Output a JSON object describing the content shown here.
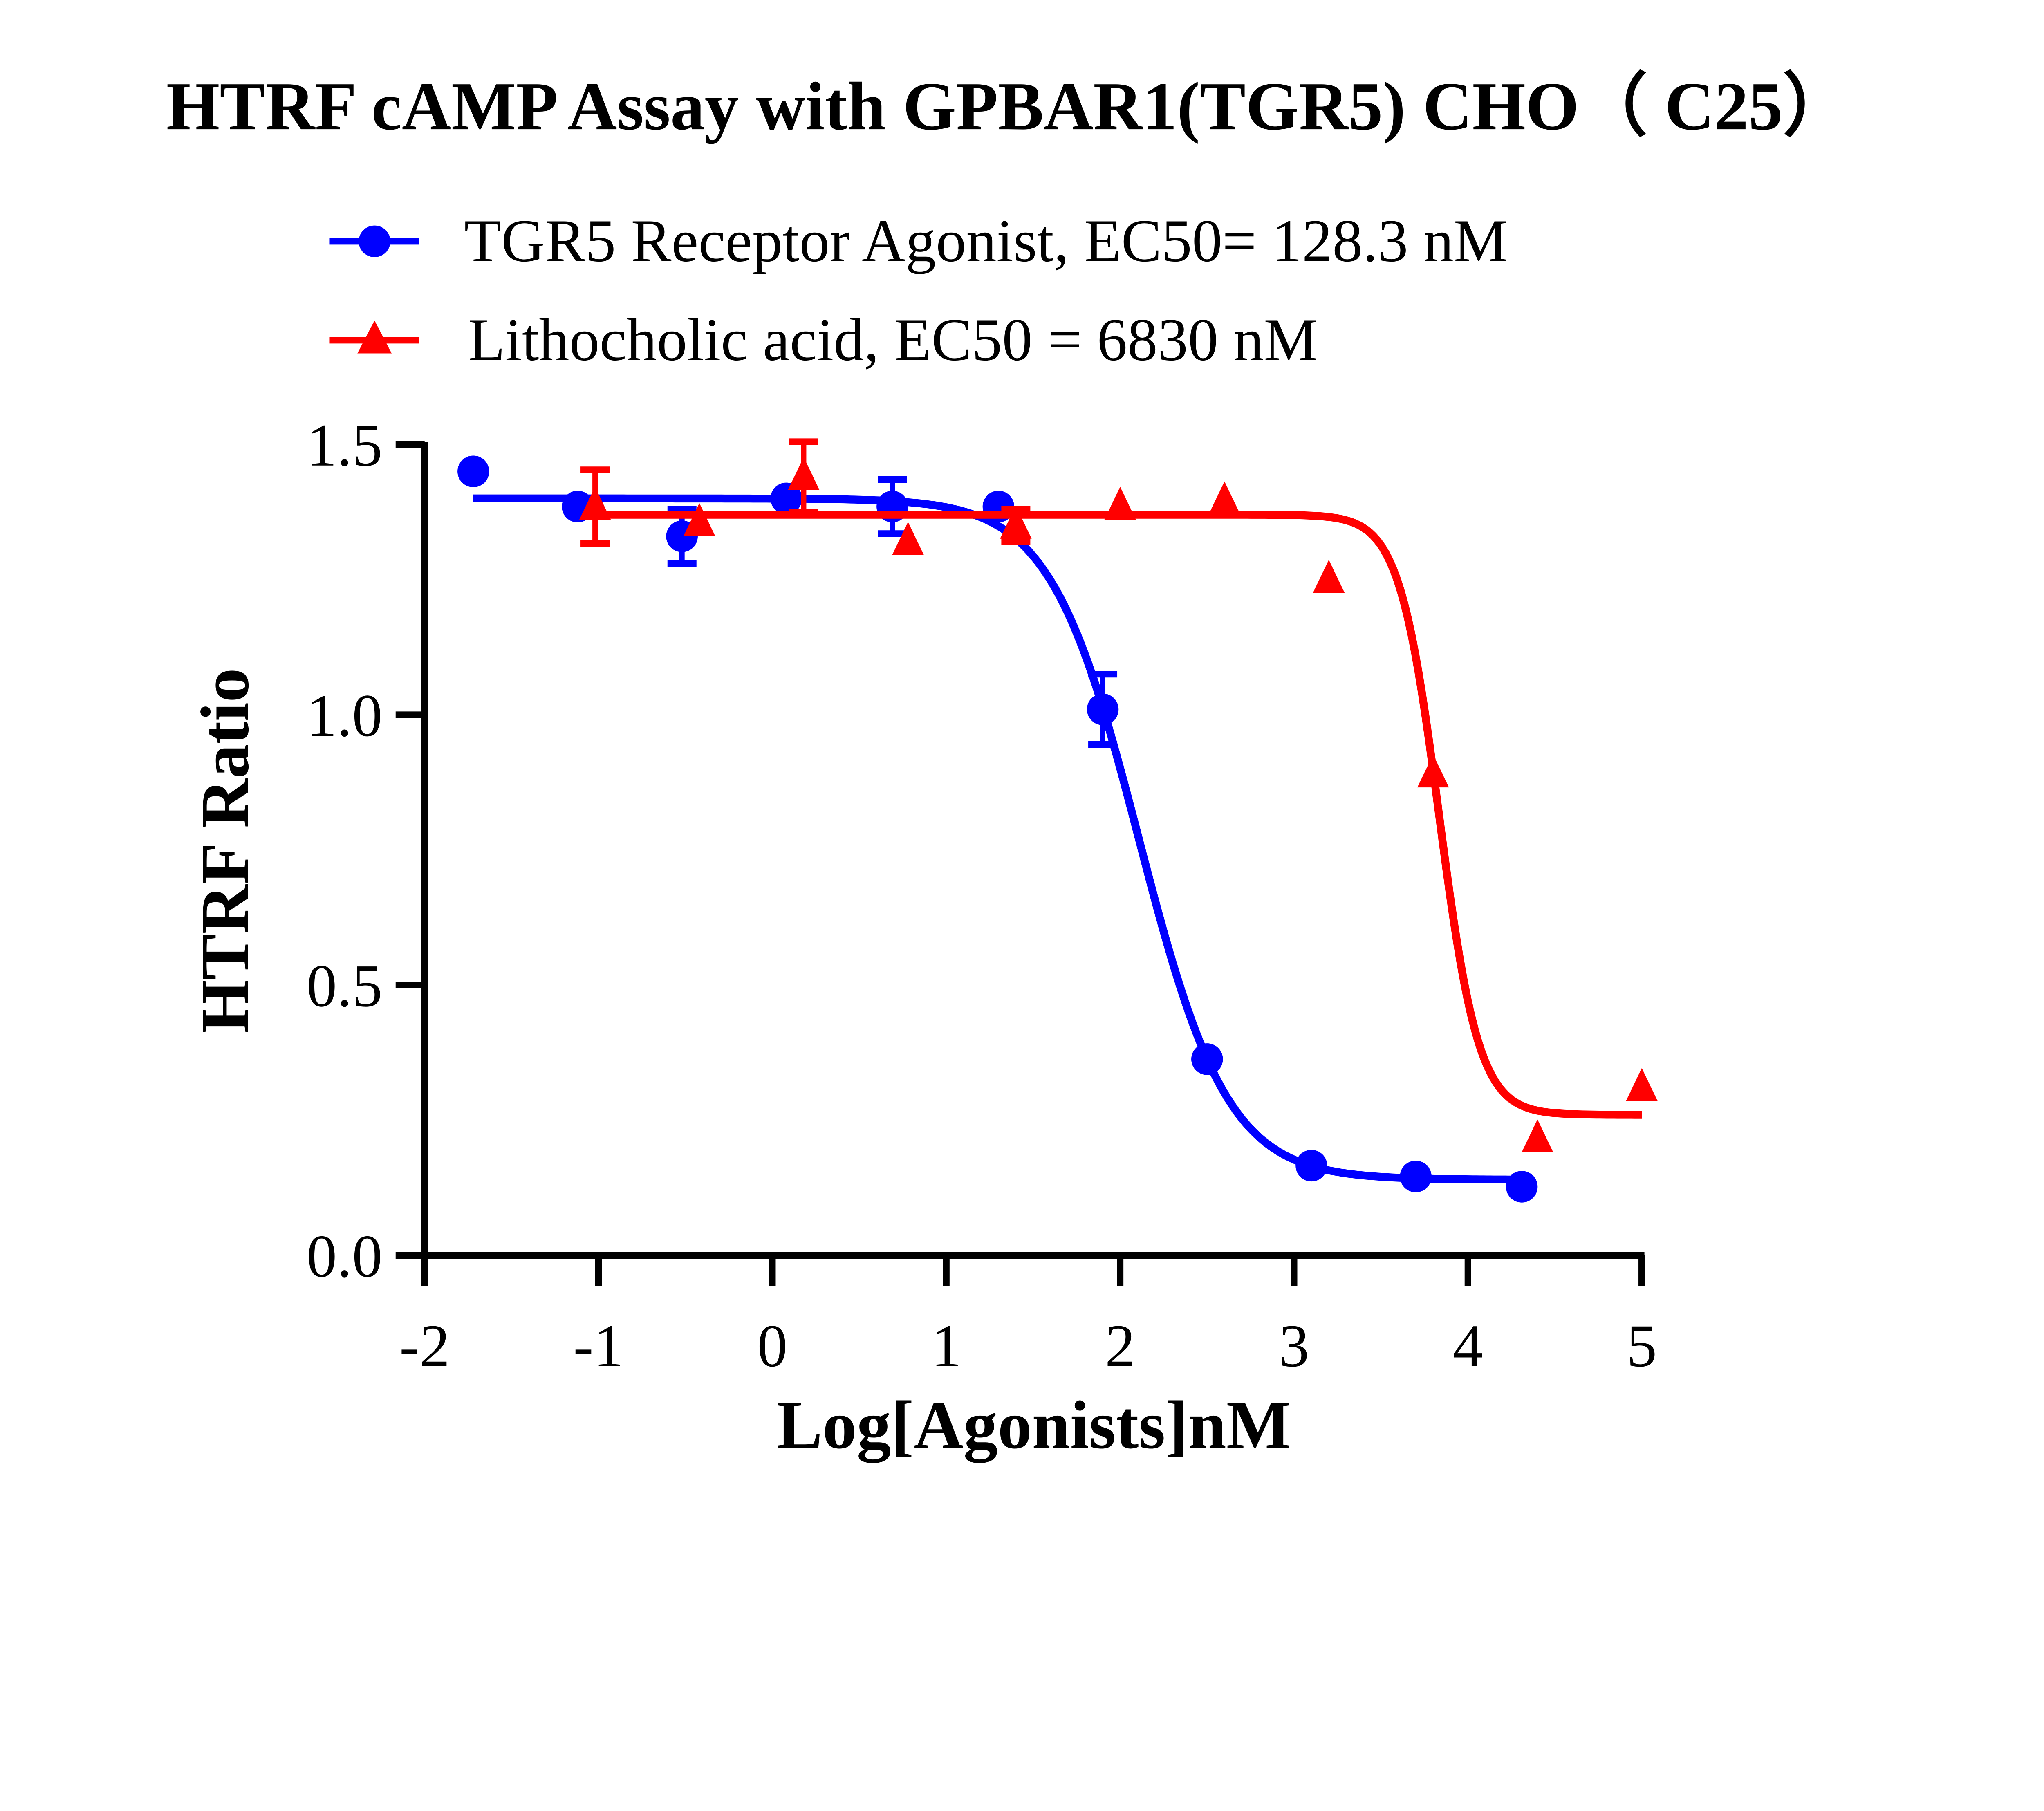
{
  "chart_data": {
    "type": "scatter",
    "title": "HTRF cAMP Assay with GPBAR1(TGR5) CHO（ C25）",
    "xlabel": "Log[Agonists]nM",
    "ylabel": "HTRF Ratio",
    "xlim": [
      -2,
      5
    ],
    "ylim": [
      0,
      1.5
    ],
    "x_ticks": [
      "-2",
      "-1",
      "0",
      "1",
      "2",
      "3",
      "4",
      "5"
    ],
    "y_ticks": [
      "0.0",
      "0.5",
      "1.0",
      "1.5"
    ],
    "grid": false,
    "legend_position": "top",
    "series": [
      {
        "name": "TGR5 Receptor Agonist, EC50= 128.3 nM",
        "color": "#0000ff",
        "marker": "circle",
        "x": [
          -1.72,
          -1.12,
          -0.52,
          0.08,
          0.69,
          1.3,
          1.9,
          2.5,
          3.1,
          3.7,
          4.31
        ],
        "y": [
          1.45,
          1.385,
          1.33,
          1.4,
          1.385,
          1.385,
          1.01,
          0.363,
          0.166,
          0.146,
          0.127
        ],
        "error": [
          0,
          0,
          0.05,
          0,
          0.05,
          0,
          0.065,
          0,
          0,
          0,
          0
        ],
        "fit": {
          "model": "sigmoidal dose-response",
          "top": 1.4,
          "bottom": 0.14,
          "logEC50": 2.108,
          "hill": 1.7
        }
      },
      {
        "name": "Lithocholic acid, EC50 = 6830 nM",
        "color": "#ff0000",
        "marker": "triangle",
        "x": [
          -1.02,
          -0.42,
          0.18,
          0.78,
          1.4,
          2.0,
          2.6,
          3.2,
          3.8,
          4.4,
          5.0
        ],
        "y": [
          1.385,
          1.355,
          1.44,
          1.32,
          1.35,
          1.385,
          1.395,
          1.25,
          0.89,
          0.215,
          0.31
        ],
        "error": [
          0.068,
          0,
          0.065,
          0,
          0.03,
          0,
          0,
          0,
          0,
          0,
          0
        ],
        "fit": {
          "model": "sigmoidal dose-response",
          "top": 1.37,
          "bottom": 0.26,
          "logEC50": 3.834,
          "hill": 3.8
        }
      }
    ]
  }
}
